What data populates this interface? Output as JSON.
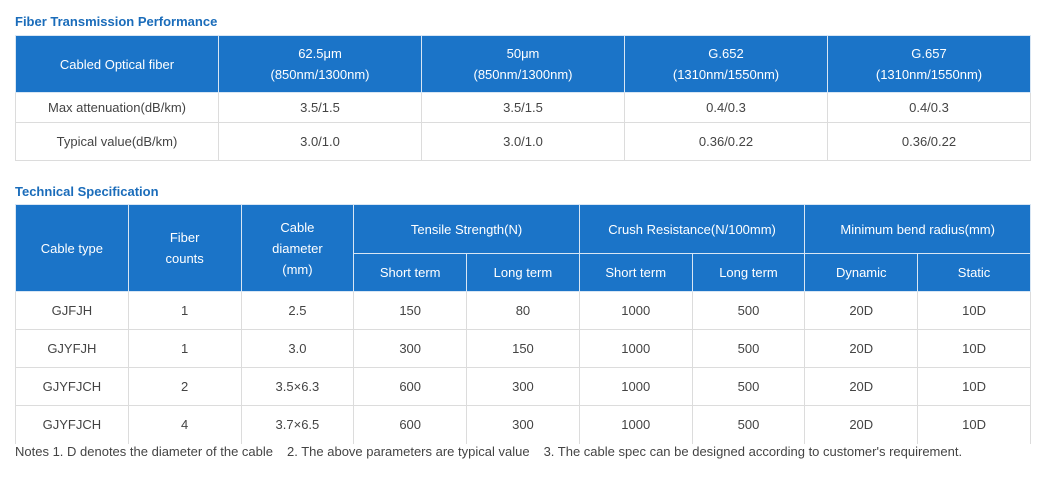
{
  "fiber_performance": {
    "title": "Fiber Transmission Performance",
    "header": [
      [
        "Cabled Optical fiber"
      ],
      [
        "62.5μm",
        "(850nm/1300nm)"
      ],
      [
        "50μm",
        "(850nm/1300nm)"
      ],
      [
        "G.652",
        "(1310nm/1550nm)"
      ],
      [
        "G.657",
        "(1310nm/1550nm)"
      ]
    ],
    "rows": [
      [
        "Max attenuation(dB/km)",
        "3.5/1.5",
        "3.5/1.5",
        "0.4/0.3",
        "0.4/0.3"
      ],
      [
        "Typical value(dB/km)",
        "3.0/1.0",
        "3.0/1.0",
        "0.36/0.22",
        "0.36/0.22"
      ]
    ]
  },
  "technical_spec": {
    "title": "Technical Specification",
    "header": {
      "single": [
        [
          "Cable type"
        ],
        [
          "Fiber",
          "counts"
        ],
        [
          "Cable",
          "diameter",
          "(mm)"
        ]
      ],
      "groups": [
        {
          "label": "Tensile Strength(N)",
          "sub": [
            "Short term",
            "Long term"
          ]
        },
        {
          "label": "Crush Resistance(N/100mm)",
          "sub": [
            "Short term",
            "Long term"
          ]
        },
        {
          "label": "Minimum bend radius(mm)",
          "sub": [
            "Dynamic",
            "Static"
          ]
        }
      ]
    },
    "rows": [
      [
        "GJFJH",
        "1",
        "2.5",
        "150",
        "80",
        "1000",
        "500",
        "20D",
        "10D"
      ],
      [
        "GJYFJH",
        "1",
        "3.0",
        "300",
        "150",
        "1000",
        "500",
        "20D",
        "10D"
      ],
      [
        "GJYFJCH",
        "2",
        "3.5×6.3",
        "600",
        "300",
        "1000",
        "500",
        "20D",
        "10D"
      ],
      [
        "GJYFJCH",
        "4",
        "3.7×6.5",
        "600",
        "300",
        "1000",
        "500",
        "20D",
        "10D"
      ]
    ]
  },
  "notes": [
    "Notes 1. D denotes the diameter of the cable",
    "2. The above parameters are typical value",
    "3. The cable spec can be designed according to customer's requirement."
  ]
}
